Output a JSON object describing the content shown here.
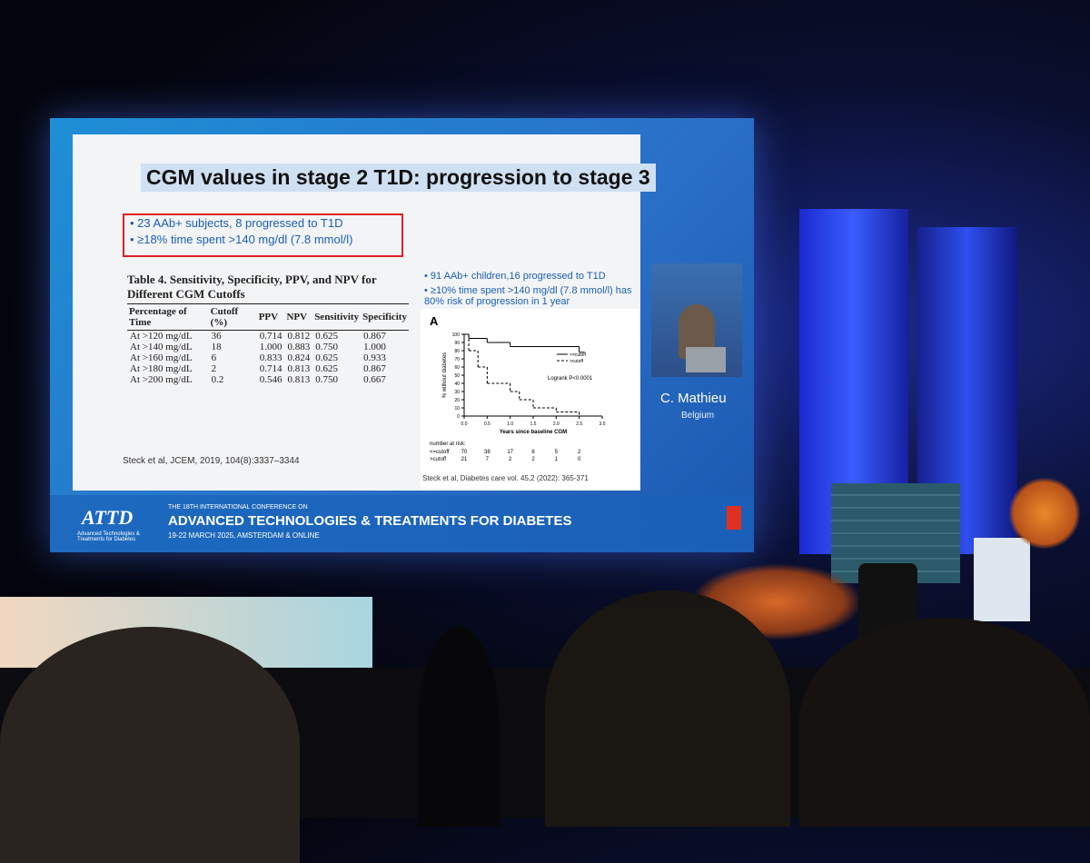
{
  "slide": {
    "title": "CGM values in stage 2 T1D: progression to stage 3",
    "left_bullets": [
      "23 AAb+ subjects, 8 progressed to T1D",
      "≥18% time spent >140 mg/dl (7.8 mmol/l)"
    ],
    "table": {
      "caption": "Table 4.  Sensitivity, Specificity, PPV, and NPV for Different CGM Cutoffs",
      "header": [
        "Percentage of Time",
        "Cutoff (%)",
        "PPV",
        "NPV",
        "Sensitivity",
        "Specificity"
      ],
      "rows": [
        [
          "At >120 mg/dL",
          "36",
          "0.714",
          "0.812",
          "0.625",
          "0.867"
        ],
        [
          "At >140 mg/dL",
          "18",
          "1.000",
          "0.883",
          "0.750",
          "1.000"
        ],
        [
          "At >160 mg/dL",
          "6",
          "0.833",
          "0.824",
          "0.625",
          "0.933"
        ],
        [
          "At >180 mg/dL",
          "2",
          "0.714",
          "0.813",
          "0.625",
          "0.867"
        ],
        [
          "At >200 mg/dL",
          "0.2",
          "0.546",
          "0.813",
          "0.750",
          "0.667"
        ]
      ]
    },
    "left_citation": "Steck et al, JCEM, 2019, 104(8):3337–3344",
    "right_bullets": [
      "91 AAb+ children,16 progressed to T1D",
      "≥10% time spent >140 mg/dl (7.8 mmol/l) has 80% risk of progression in 1 year"
    ],
    "figure": {
      "panel": "A",
      "y_label": "% without diabetes",
      "x_label": "Years since baseline CGM",
      "xlim": [
        0,
        3
      ],
      "ylim": [
        0,
        100
      ],
      "yticks": [
        0,
        10,
        20,
        30,
        40,
        50,
        60,
        70,
        80,
        90,
        100
      ],
      "xticks": [
        {
          "value": 0,
          "label": "0.0"
        },
        {
          "value": 0.5,
          "label": "0.5"
        },
        {
          "value": 1,
          "label": "1.0"
        },
        {
          "value": 1.5,
          "label": "1.5"
        },
        {
          "value": 2,
          "label": "2.0"
        },
        {
          "value": 2.5,
          "label": "2.5"
        },
        {
          "value": 3,
          "label": "3.0"
        }
      ],
      "series": [
        {
          "name": "<=cutoff",
          "x": [
            0,
            0.1,
            0.5,
            1,
            2.5
          ],
          "values": [
            100,
            95,
            90,
            85,
            78
          ]
        },
        {
          "name": ">cutoff",
          "x": [
            0,
            0.1,
            0.3,
            0.5,
            1,
            1.2,
            1.5,
            2,
            2.5
          ],
          "values": [
            100,
            80,
            60,
            40,
            30,
            20,
            10,
            5,
            0
          ]
        }
      ],
      "annotation": "Logrank P<0.0001",
      "risk_title": "number at risk:",
      "risk_rows": [
        {
          "label": "<=cutoff",
          "counts": [
            "70",
            "38",
            "17",
            "6",
            "5",
            "2"
          ]
        },
        {
          "label": ">cutoff",
          "counts": [
            "21",
            "7",
            "2",
            "2",
            "1",
            "0"
          ]
        }
      ]
    },
    "right_citation": "Steck et al, Diabetes care vol. 45,2 (2022): 365-371",
    "speaker": {
      "name": "C. Mathieu",
      "country": "Belgium"
    },
    "footer": {
      "logo": "ATTD",
      "logo_sub": "Advanced Technologies & Treatments for Diabetes",
      "edition": "THE 18TH INTERNATIONAL CONFERENCE ON",
      "conference": "ADVANCED TECHNOLOGIES & TREATMENTS FOR DIABETES",
      "dates": "19-22 MARCH 2025, AMSTERDAM & ONLINE"
    }
  }
}
